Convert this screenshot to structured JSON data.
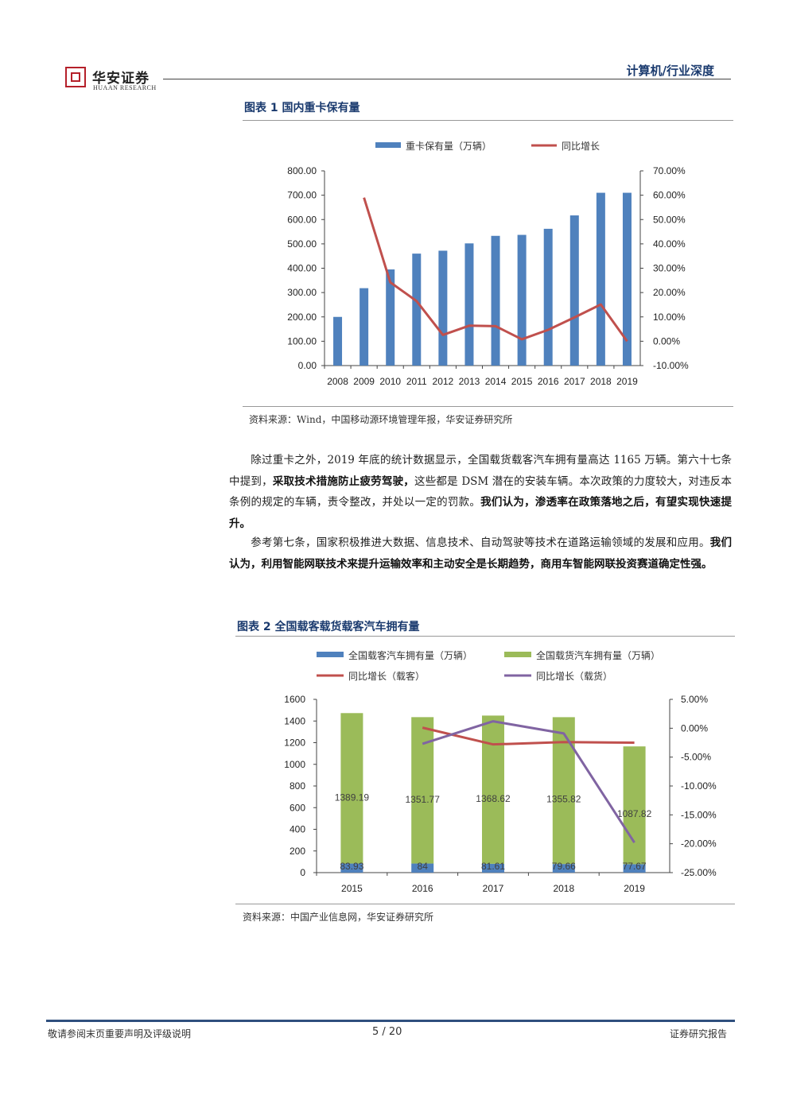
{
  "header": {
    "brand_cn": "华安证券",
    "brand_en": "HUAAN RESEARCH",
    "section_tag": "计算机/行业深度"
  },
  "figure1": {
    "title": "图表 1 国内重卡保有量",
    "source": "资料来源：Wind，中国移动源环境管理年报，华安证券研究所"
  },
  "figure2": {
    "title": "图表 2 全国载客载货载客汽车拥有量",
    "source": "资料来源：中国产业信息网，华安证券研究所"
  },
  "body": {
    "p1_a": "除过重卡之外，2019 年底的统计数据显示，全国载货载客汽车拥有量高达 1165 万辆。第六十七条中提到，",
    "p1_b": "采取技术措施防止疲劳驾驶，",
    "p1_c": "这些都是 DSM 潜在的安装车辆。本次政策的力度较大，对违反本条例的规定的车辆，责令整改，并处以一定的罚款。",
    "p1_d": "我们认为，渗透率在政策落地之后，有望实现快速提升。",
    "p2_a": "参考第七条，国家积极推进大数据、信息技术、自动驾驶等技术在道路运输领域的发展和应用。",
    "p2_b": "我们认为，利用智能网联技术来提升运输效率和主动安全是长期趋势，商用车智能网联投资赛道确定性强。"
  },
  "footer": {
    "left": "敬请参阅末页重要声明及评级说明",
    "page": "5 / 20",
    "right": "证券研究报告"
  },
  "colors": {
    "blue": "#4f81bd",
    "red": "#c0504d",
    "green": "#9bbb59",
    "purple": "#8064a2",
    "title_blue": "#1a3a6e"
  },
  "chart_data": [
    {
      "type": "bar",
      "categories": [
        "2008",
        "2009",
        "2010",
        "2011",
        "2012",
        "2013",
        "2014",
        "2015",
        "2016",
        "2017",
        "2018",
        "2019"
      ],
      "series": [
        {
          "name": "重卡保有量（万辆）",
          "type": "bar",
          "axis": "left",
          "values": [
            200,
            318,
            395,
            460,
            472,
            502,
            533,
            537,
            562,
            617,
            710,
            710
          ]
        },
        {
          "name": "同比增长",
          "type": "line",
          "axis": "right",
          "values": [
            null,
            0.59,
            0.242,
            0.165,
            0.026,
            0.064,
            0.062,
            0.008,
            0.047,
            0.098,
            0.151,
            0.0
          ]
        }
      ],
      "left_axis": {
        "min": 0,
        "max": 800,
        "step": 100,
        "ticks": [
          "0.00",
          "100.00",
          "200.00",
          "300.00",
          "400.00",
          "500.00",
          "600.00",
          "700.00",
          "800.00"
        ]
      },
      "right_axis": {
        "min": -0.1,
        "max": 0.7,
        "step": 0.1,
        "ticks": [
          "-10.00%",
          "0.00%",
          "10.00%",
          "20.00%",
          "30.00%",
          "40.00%",
          "50.00%",
          "60.00%",
          "70.00%"
        ]
      },
      "legend": "top"
    },
    {
      "type": "bar",
      "categories": [
        "2015",
        "2016",
        "2017",
        "2018",
        "2019"
      ],
      "series": [
        {
          "name": "全国载客汽车拥有量（万辆）",
          "type": "stacked-bar",
          "axis": "left",
          "values": [
            83.93,
            84,
            81.61,
            79.66,
            77.67
          ],
          "labels": [
            "83.93",
            "84",
            "81.61",
            "79.66",
            "77.67"
          ]
        },
        {
          "name": "全国载货汽车拥有量（万辆）",
          "type": "stacked-bar",
          "axis": "left",
          "values": [
            1389.19,
            1351.77,
            1368.62,
            1355.82,
            1087.82
          ],
          "labels": [
            "1389.19",
            "1351.77",
            "1368.62",
            "1355.82",
            "1087.82"
          ]
        },
        {
          "name": "同比增长（载客）",
          "type": "line",
          "axis": "right",
          "values": [
            null,
            0.001,
            -0.028,
            -0.024,
            -0.025
          ]
        },
        {
          "name": "同比增长（载货）",
          "type": "line",
          "axis": "right",
          "values": [
            null,
            -0.027,
            0.012,
            -0.009,
            -0.198
          ]
        }
      ],
      "left_axis": {
        "min": 0,
        "max": 1600,
        "step": 200,
        "ticks": [
          "0",
          "200",
          "400",
          "600",
          "800",
          "1000",
          "1200",
          "1400",
          "1600"
        ]
      },
      "right_axis": {
        "min": -0.25,
        "max": 0.05,
        "step": 0.05,
        "ticks": [
          "-25.00%",
          "-20.00%",
          "-15.00%",
          "-10.00%",
          "-5.00%",
          "0.00%",
          "5.00%"
        ]
      },
      "legend": "top"
    }
  ]
}
